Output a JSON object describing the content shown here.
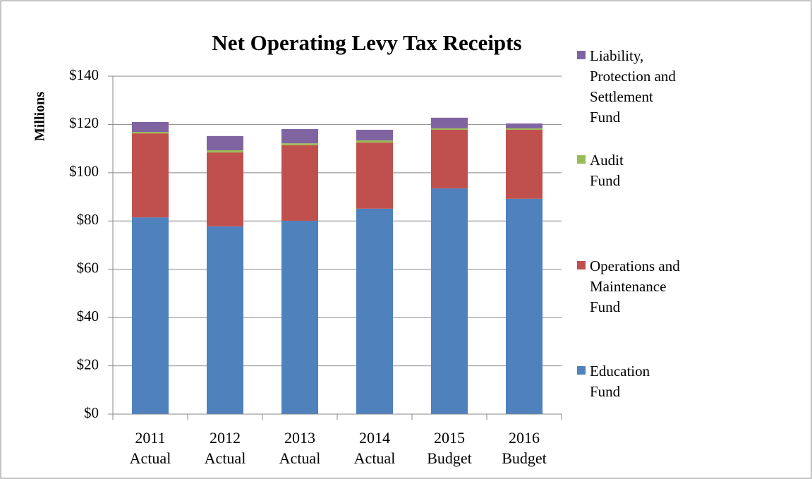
{
  "chart_data": {
    "type": "stacked_bar",
    "title": "Net Operating Levy Tax Receipts",
    "y_label": "Millions",
    "categories": [
      "2011\nActual",
      "2012\nActual",
      "2013\nActual",
      "2014\nActual",
      "2015\nBudget",
      "2016\nBudget"
    ],
    "series": [
      {
        "name": "Education\nFund",
        "color": "#4f81bd",
        "values": [
          81.5,
          77.8,
          80.1,
          85.1,
          93.5,
          89.2
        ]
      },
      {
        "name": "Operations and\nMaintenance\nFund",
        "color": "#c0504d",
        "values": [
          34.8,
          30.6,
          31.3,
          27.4,
          24.3,
          28.6
        ]
      },
      {
        "name": "Audit\nFund",
        "color": "#9bbb59",
        "values": [
          0.6,
          0.9,
          0.8,
          0.9,
          0.6,
          0.6
        ]
      },
      {
        "name": "Liability,\nProtection and\nSettlement\nFund",
        "color": "#8064a2",
        "values": [
          4.1,
          5.9,
          5.9,
          4.4,
          4.4,
          2.0
        ]
      }
    ],
    "ylim": [
      0,
      140
    ],
    "yticks": [
      {
        "value": 0,
        "label": "$0"
      },
      {
        "value": 20,
        "label": "$20"
      },
      {
        "value": 40,
        "label": "$40"
      },
      {
        "value": 60,
        "label": "$60"
      },
      {
        "value": 80,
        "label": "$80"
      },
      {
        "value": 100,
        "label": "$100"
      },
      {
        "value": 120,
        "label": "$120"
      },
      {
        "value": 140,
        "label": "$140"
      }
    ],
    "grid": true,
    "legend": "right"
  }
}
